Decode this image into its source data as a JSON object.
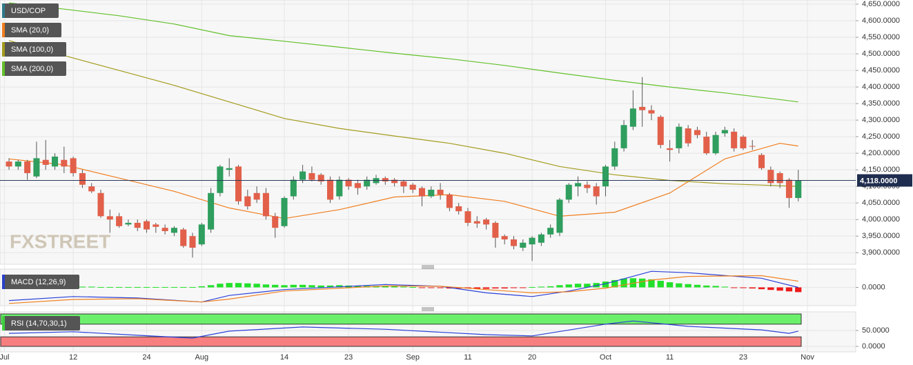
{
  "chart_data": [
    {
      "type": "candlestick",
      "name": "USD/COP",
      "color": "#2f7a8a",
      "up_color": "#2f9e5e",
      "down_color": "#e2604a",
      "watermark": "FXSTREET",
      "grid": true,
      "last_price": {
        "value": 4118,
        "label": "4,118.0000"
      },
      "open": [
        4175,
        4160,
        4175,
        4130,
        4180,
        4160,
        4180,
        4185,
        4140,
        4100,
        4080,
        4010,
        4010,
        3985,
        3990,
        3995,
        3985,
        3975,
        3960,
        3970,
        3950,
        3925,
        3970,
        4080,
        4150,
        4160,
        4070,
        4080,
        4080,
        4010,
        3980,
        4070,
        4120,
        4140,
        4135,
        4120,
        4070,
        4120,
        4110,
        4100,
        4110,
        4125,
        4120,
        4115,
        4105,
        4095,
        4070,
        4090,
        4075,
        4040,
        4025,
        3995,
        4000,
        3990,
        3950,
        3940,
        3915,
        3925,
        3930,
        3955,
        3960,
        4060,
        4100,
        4105,
        4100,
        4100,
        4160,
        4215,
        4280,
        4340,
        4330,
        4310,
        4215,
        4215,
        4275,
        4270,
        4250,
        4200,
        4260,
        4265,
        4250,
        4222,
        4195,
        4150,
        4140,
        4120,
        4065
      ],
      "high": [
        4185,
        4180,
        4180,
        4235,
        4240,
        4200,
        4220,
        4190,
        4150,
        4110,
        4090,
        4030,
        4020,
        4000,
        4000,
        4000,
        3990,
        3985,
        3980,
        3975,
        3960,
        3990,
        4095,
        4165,
        4185,
        4165,
        4090,
        4100,
        4095,
        4020,
        4070,
        4130,
        4165,
        4160,
        4140,
        4130,
        4130,
        4125,
        4120,
        4130,
        4135,
        4130,
        4125,
        4120,
        4110,
        4100,
        4100,
        4110,
        4080,
        4050,
        4035,
        4010,
        4005,
        3995,
        3955,
        3950,
        3940,
        3950,
        3960,
        3985,
        4065,
        4110,
        4130,
        4115,
        4110,
        4165,
        4235,
        4300,
        4390,
        4430,
        4345,
        4315,
        4240,
        4290,
        4285,
        4280,
        4265,
        4265,
        4280,
        4275,
        4255,
        4240,
        4200,
        4160,
        4145,
        4125,
        4150
      ],
      "low": [
        4150,
        4150,
        4120,
        4125,
        4150,
        4150,
        4140,
        4130,
        4095,
        4080,
        4005,
        3960,
        3975,
        3980,
        3965,
        3960,
        3960,
        3955,
        3950,
        3915,
        3885,
        3920,
        3960,
        4070,
        4130,
        4045,
        4030,
        4050,
        4000,
        3945,
        3975,
        4060,
        4110,
        4115,
        4105,
        4050,
        4060,
        4090,
        4075,
        4090,
        4105,
        4105,
        4100,
        4080,
        4080,
        4040,
        4065,
        4060,
        4025,
        4015,
        3980,
        3975,
        3970,
        3915,
        3925,
        3910,
        3905,
        3875,
        3920,
        3945,
        3950,
        4050,
        4070,
        4080,
        4045,
        4070,
        4150,
        4205,
        4270,
        4280,
        4300,
        4215,
        4175,
        4200,
        4220,
        4245,
        4195,
        4195,
        4250,
        4205,
        4210,
        4210,
        4150,
        4100,
        4095,
        4035,
        4055
      ],
      "close": [
        4160,
        4175,
        4140,
        4185,
        4165,
        4190,
        4160,
        4140,
        4105,
        4085,
        4010,
        4000,
        3980,
        3990,
        3975,
        3970,
        3978,
        3965,
        3975,
        3920,
        3915,
        3985,
        4080,
        4160,
        4155,
        4055,
        4040,
        4060,
        4010,
        3975,
        4065,
        4120,
        4145,
        4120,
        4115,
        4060,
        4120,
        4100,
        4095,
        4120,
        4125,
        4115,
        4110,
        4100,
        4090,
        4070,
        4090,
        4075,
        4035,
        4025,
        3990,
        3988,
        3985,
        3945,
        3940,
        3920,
        3930,
        3945,
        3955,
        3975,
        4060,
        4105,
        4110,
        4095,
        4070,
        4160,
        4215,
        4285,
        4335,
        4330,
        4320,
        4225,
        4210,
        4280,
        4230,
        4255,
        4200,
        4255,
        4270,
        4215,
        4215,
        4220,
        4155,
        4110,
        4110,
        4065,
        4118
      ],
      "series": [
        {
          "name": "SMA (20,0)",
          "color": "#f07d1e",
          "x": [
            0,
            6,
            12,
            18,
            24,
            30,
            36,
            42,
            48,
            54,
            60,
            66,
            72,
            78,
            84,
            86
          ],
          "values": [
            4183,
            4165,
            4125,
            4085,
            4035,
            4003,
            4030,
            4068,
            4075,
            4055,
            4010,
            4022,
            4080,
            4183,
            4230,
            4222
          ]
        },
        {
          "name": "SMA (100,0)",
          "color": "#a39b1c",
          "x": [
            0,
            6,
            12,
            18,
            24,
            30,
            36,
            42,
            48,
            54,
            60,
            66,
            72,
            78,
            84,
            86
          ],
          "values": [
            4540,
            4495,
            4450,
            4405,
            4355,
            4305,
            4275,
            4252,
            4230,
            4200,
            4160,
            4135,
            4118,
            4108,
            4102,
            4100
          ]
        },
        {
          "name": "SMA (200,0)",
          "color": "#62c02a",
          "x": [
            0,
            6,
            12,
            18,
            24,
            30,
            36,
            42,
            48,
            54,
            60,
            66,
            72,
            78,
            84,
            86
          ],
          "values": [
            4654,
            4635,
            4615,
            4590,
            4555,
            4538,
            4520,
            4502,
            4485,
            4465,
            4442,
            4420,
            4400,
            4382,
            4362,
            4355
          ]
        }
      ],
      "xlim": [
        -0.98,
        92.26
      ],
      "xticks": [
        {
          "value": -0.5,
          "label": "Jul"
        },
        {
          "value": 7,
          "label": "12"
        },
        {
          "value": 15,
          "label": "24"
        },
        {
          "value": 21,
          "label": "Aug"
        },
        {
          "value": 30,
          "label": "14"
        },
        {
          "value": 37,
          "label": "23"
        },
        {
          "value": 44,
          "label": "Sep"
        },
        {
          "value": 50,
          "label": "11"
        },
        {
          "value": 57,
          "label": "20"
        },
        {
          "value": 65,
          "label": "Oct"
        },
        {
          "value": 72,
          "label": "11"
        },
        {
          "value": 80,
          "label": "23"
        },
        {
          "value": 87,
          "label": "Nov"
        }
      ],
      "ylim": [
        3865,
        4662.5
      ],
      "yticks": [
        {
          "value": 4650,
          "label": "4,650.0000"
        },
        {
          "value": 4600,
          "label": "4,600.0000"
        },
        {
          "value": 4550,
          "label": "4,550.0000"
        },
        {
          "value": 4500,
          "label": "4,500.0000"
        },
        {
          "value": 4450,
          "label": "4,450.0000"
        },
        {
          "value": 4400,
          "label": "4,400.0000"
        },
        {
          "value": 4350,
          "label": "4,350.0000"
        },
        {
          "value": 4300,
          "label": "4,300.0000"
        },
        {
          "value": 4250,
          "label": "4,250.0000"
        },
        {
          "value": 4200,
          "label": "4,200.0000"
        },
        {
          "value": 4150,
          "label": "4,150.0000"
        },
        {
          "value": 4100,
          "label": "4,100.0000"
        },
        {
          "value": 4050,
          "label": "4,050.0000"
        },
        {
          "value": 4000,
          "label": "4,000.0000"
        },
        {
          "value": 3950,
          "label": "3,950.0000"
        },
        {
          "value": 3900,
          "label": "3,900.0000"
        }
      ]
    },
    {
      "type": "macd",
      "title": "MACD (12,26,9)",
      "color": "#2a40c8",
      "grid": true,
      "histogram": {
        "up_color": "#22e02a",
        "down_color": "#ee1a1a",
        "values": [
          2,
          2,
          2,
          2,
          2,
          2,
          2,
          2,
          2,
          2,
          1,
          1,
          1,
          1,
          1,
          1,
          1,
          1,
          1,
          1,
          1,
          3,
          6,
          10,
          12,
          12,
          11,
          10,
          8,
          7,
          6,
          7,
          7,
          6,
          5,
          5,
          6,
          5,
          4,
          4,
          4,
          3,
          3,
          2,
          1,
          -1,
          -1,
          -2,
          -3,
          -3,
          -3,
          -4,
          -4,
          -3,
          -3,
          -2,
          -1,
          1,
          2,
          3,
          6,
          8,
          10,
          10,
          12,
          16,
          20,
          24,
          25,
          24,
          22,
          18,
          14,
          11,
          9,
          7,
          5,
          4,
          2,
          -1,
          -2,
          -3,
          -5,
          -7,
          -9,
          -11,
          -13
        ]
      },
      "series": [
        {
          "color": "#2a40d8",
          "x": [
            0,
            7,
            14,
            21,
            24,
            30,
            41,
            47,
            52,
            57,
            61,
            65,
            70,
            74,
            82,
            86
          ],
          "values": [
            -36,
            -25,
            -29,
            -40,
            -22,
            -6,
            8,
            3,
            -15,
            -25,
            -10,
            10,
            44,
            40,
            25,
            0
          ]
        },
        {
          "color": "#f08020",
          "x": [
            0,
            7,
            14,
            21,
            24,
            30,
            41,
            47,
            52,
            57,
            61,
            65,
            70,
            74,
            82,
            86
          ],
          "values": [
            -44,
            -33,
            -31,
            -40,
            -32,
            -10,
            4,
            3,
            -6,
            -15,
            -12,
            -2,
            20,
            30,
            32,
            17
          ]
        }
      ],
      "xlim": [
        -0.98,
        92.26
      ],
      "ylim": [
        -50,
        50
      ],
      "yticks": [
        {
          "value": 0,
          "label": "0.0000"
        }
      ]
    },
    {
      "type": "rsi",
      "title": "RSI (14,70,30,1)",
      "color": "#3ecf3e",
      "grid": true,
      "overbought": 70,
      "oversold": 30,
      "overbought_color": "#6cf06c",
      "oversold_color": "#f77f7f",
      "series": [
        {
          "color": "#2a40d8",
          "x": [
            0,
            7,
            14,
            20,
            24,
            32,
            41,
            52,
            57,
            65,
            68,
            74,
            82,
            85,
            86
          ],
          "values": [
            41,
            46,
            35,
            26,
            48,
            61,
            54,
            37,
            33,
            70,
            80,
            63,
            52,
            41,
            48
          ]
        }
      ],
      "xlim": [
        -0.98,
        92.26
      ],
      "ylim": [
        -17.4,
        108.7
      ],
      "yticks": [
        {
          "value": 50,
          "label": "50.0000"
        },
        {
          "value": 0,
          "label": "0.0000"
        }
      ]
    }
  ]
}
